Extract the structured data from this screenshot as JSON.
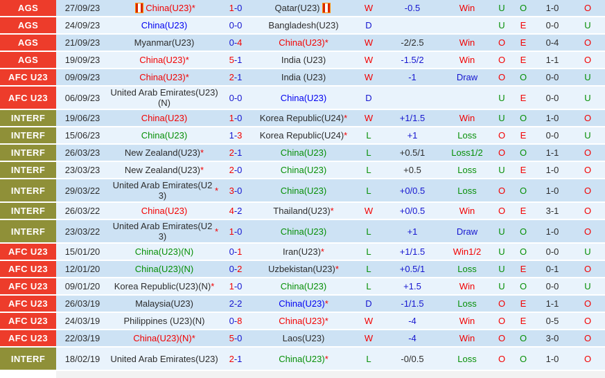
{
  "palette": {
    "row_dark": "#cde2f4",
    "row_light": "#e9f3fc",
    "badge_red": "#ed3c2b",
    "badge_olive": "#8f9038",
    "red": "#f20000",
    "blue": "#1515cf",
    "team_blue": "#0000f0",
    "green": "#068f06",
    "dark": "#2d2d2d"
  },
  "league_colors": {
    "AGS": "badge_red",
    "AFC U23": "badge_red",
    "INTERF": "badge_olive"
  },
  "rows": [
    {
      "league": "AGS",
      "date": "27/09/23",
      "home": {
        "name": "China(U23)",
        "star": true,
        "color": "red",
        "icon": true
      },
      "score": {
        "home": 1,
        "away": 0
      },
      "away": {
        "name": "Qatar(U23)",
        "star": false,
        "color": "dark",
        "icon": true
      },
      "result_letter": {
        "text": "W",
        "color": "red"
      },
      "handicap": {
        "text": "-0.5",
        "color": "blue"
      },
      "handicap_result": {
        "text": "Win",
        "color": "red"
      },
      "over_under": {
        "text": "U",
        "color": "green"
      },
      "odd_even": {
        "text": "O",
        "color": "green"
      },
      "half_time": "1-0",
      "over_under2": {
        "text": "O",
        "color": "red"
      },
      "tall": false
    },
    {
      "league": "AGS",
      "date": "24/09/23",
      "home": {
        "name": "China(U23)",
        "star": false,
        "color": "team_blue",
        "icon": false
      },
      "score": {
        "home": 0,
        "away": 0
      },
      "away": {
        "name": "Bangladesh(U23)",
        "star": false,
        "color": "dark",
        "icon": false
      },
      "result_letter": {
        "text": "D",
        "color": "blue"
      },
      "handicap": {
        "text": "",
        "color": "dark"
      },
      "handicap_result": {
        "text": "",
        "color": "dark"
      },
      "over_under": {
        "text": "U",
        "color": "green"
      },
      "odd_even": {
        "text": "E",
        "color": "red"
      },
      "half_time": "0-0",
      "over_under2": {
        "text": "U",
        "color": "green"
      },
      "tall": false
    },
    {
      "league": "AGS",
      "date": "21/09/23",
      "home": {
        "name": "Myanmar(U23)",
        "star": false,
        "color": "dark",
        "icon": false
      },
      "score": {
        "home": 0,
        "away": 4
      },
      "away": {
        "name": "China(U23)",
        "star": true,
        "color": "red",
        "icon": false
      },
      "result_letter": {
        "text": "W",
        "color": "red"
      },
      "handicap": {
        "text": "-2/2.5",
        "color": "dark"
      },
      "handicap_result": {
        "text": "Win",
        "color": "red"
      },
      "over_under": {
        "text": "O",
        "color": "red"
      },
      "odd_even": {
        "text": "E",
        "color": "red"
      },
      "half_time": "0-4",
      "over_under2": {
        "text": "O",
        "color": "red"
      },
      "tall": false
    },
    {
      "league": "AGS",
      "date": "19/09/23",
      "home": {
        "name": "China(U23)",
        "star": true,
        "color": "red",
        "icon": false
      },
      "score": {
        "home": 5,
        "away": 1
      },
      "away": {
        "name": "India (U23)",
        "star": false,
        "color": "dark",
        "icon": false
      },
      "result_letter": {
        "text": "W",
        "color": "red"
      },
      "handicap": {
        "text": "-1.5/2",
        "color": "blue"
      },
      "handicap_result": {
        "text": "Win",
        "color": "red"
      },
      "over_under": {
        "text": "O",
        "color": "red"
      },
      "odd_even": {
        "text": "E",
        "color": "red"
      },
      "half_time": "1-1",
      "over_under2": {
        "text": "O",
        "color": "red"
      },
      "tall": false
    },
    {
      "league": "AFC U23",
      "date": "09/09/23",
      "home": {
        "name": "China(U23)",
        "star": true,
        "color": "red",
        "icon": false
      },
      "score": {
        "home": 2,
        "away": 1
      },
      "away": {
        "name": "India (U23)",
        "star": false,
        "color": "dark",
        "icon": false
      },
      "result_letter": {
        "text": "W",
        "color": "red"
      },
      "handicap": {
        "text": "-1",
        "color": "blue"
      },
      "handicap_result": {
        "text": "Draw",
        "color": "blue"
      },
      "over_under": {
        "text": "O",
        "color": "red"
      },
      "odd_even": {
        "text": "O",
        "color": "green"
      },
      "half_time": "0-0",
      "over_under2": {
        "text": "U",
        "color": "green"
      },
      "tall": false
    },
    {
      "league": "AFC U23",
      "date": "06/09/23",
      "home": {
        "name": "United Arab Emirates(U23)(N)",
        "star": false,
        "color": "dark",
        "icon": false
      },
      "score": {
        "home": 0,
        "away": 0
      },
      "away": {
        "name": "China(U23)",
        "star": false,
        "color": "team_blue",
        "icon": false
      },
      "result_letter": {
        "text": "D",
        "color": "blue"
      },
      "handicap": {
        "text": "",
        "color": "dark"
      },
      "handicap_result": {
        "text": "",
        "color": "dark"
      },
      "over_under": {
        "text": "U",
        "color": "green"
      },
      "odd_even": {
        "text": "E",
        "color": "red"
      },
      "half_time": "0-0",
      "over_under2": {
        "text": "U",
        "color": "green"
      },
      "tall": true
    },
    {
      "league": "INTERF",
      "date": "19/06/23",
      "home": {
        "name": "China(U23)",
        "star": false,
        "color": "red",
        "icon": false
      },
      "score": {
        "home": 1,
        "away": 0
      },
      "away": {
        "name": "Korea Republic(U24)",
        "star": true,
        "color": "dark",
        "icon": false
      },
      "result_letter": {
        "text": "W",
        "color": "red"
      },
      "handicap": {
        "text": "+1/1.5",
        "color": "blue"
      },
      "handicap_result": {
        "text": "Win",
        "color": "red"
      },
      "over_under": {
        "text": "U",
        "color": "green"
      },
      "odd_even": {
        "text": "O",
        "color": "green"
      },
      "half_time": "1-0",
      "over_under2": {
        "text": "O",
        "color": "red"
      },
      "tall": false
    },
    {
      "league": "INTERF",
      "date": "15/06/23",
      "home": {
        "name": "China(U23)",
        "star": false,
        "color": "green",
        "icon": false
      },
      "score": {
        "home": 1,
        "away": 3
      },
      "away": {
        "name": "Korea Republic(U24)",
        "star": true,
        "color": "dark",
        "icon": false
      },
      "result_letter": {
        "text": "L",
        "color": "green"
      },
      "handicap": {
        "text": "+1",
        "color": "blue"
      },
      "handicap_result": {
        "text": "Loss",
        "color": "green"
      },
      "over_under": {
        "text": "O",
        "color": "red"
      },
      "odd_even": {
        "text": "E",
        "color": "red"
      },
      "half_time": "0-0",
      "over_under2": {
        "text": "U",
        "color": "green"
      },
      "tall": false
    },
    {
      "league": "INTERF",
      "date": "26/03/23",
      "home": {
        "name": "New Zealand(U23)",
        "star": true,
        "color": "dark",
        "icon": false
      },
      "score": {
        "home": 2,
        "away": 1
      },
      "away": {
        "name": "China(U23)",
        "star": false,
        "color": "green",
        "icon": false
      },
      "result_letter": {
        "text": "L",
        "color": "green"
      },
      "handicap": {
        "text": "+0.5/1",
        "color": "dark"
      },
      "handicap_result": {
        "text": "Loss1/2",
        "color": "green"
      },
      "over_under": {
        "text": "O",
        "color": "red"
      },
      "odd_even": {
        "text": "O",
        "color": "green"
      },
      "half_time": "1-1",
      "over_under2": {
        "text": "O",
        "color": "red"
      },
      "tall": false
    },
    {
      "league": "INTERF",
      "date": "23/03/23",
      "home": {
        "name": "New Zealand(U23)",
        "star": true,
        "color": "dark",
        "icon": false
      },
      "score": {
        "home": 2,
        "away": 0
      },
      "away": {
        "name": "China(U23)",
        "star": false,
        "color": "green",
        "icon": false
      },
      "result_letter": {
        "text": "L",
        "color": "green"
      },
      "handicap": {
        "text": "+0.5",
        "color": "dark"
      },
      "handicap_result": {
        "text": "Loss",
        "color": "green"
      },
      "over_under": {
        "text": "U",
        "color": "green"
      },
      "odd_even": {
        "text": "E",
        "color": "red"
      },
      "half_time": "1-0",
      "over_under2": {
        "text": "O",
        "color": "red"
      },
      "tall": false
    },
    {
      "league": "INTERF",
      "date": "29/03/22",
      "home": {
        "name": "United Arab Emirates(U23)",
        "star": true,
        "color": "dark",
        "icon": false
      },
      "score": {
        "home": 3,
        "away": 0
      },
      "away": {
        "name": "China(U23)",
        "star": false,
        "color": "green",
        "icon": false
      },
      "result_letter": {
        "text": "L",
        "color": "green"
      },
      "handicap": {
        "text": "+0/0.5",
        "color": "blue"
      },
      "handicap_result": {
        "text": "Loss",
        "color": "green"
      },
      "over_under": {
        "text": "O",
        "color": "red"
      },
      "odd_even": {
        "text": "O",
        "color": "green"
      },
      "half_time": "1-0",
      "over_under2": {
        "text": "O",
        "color": "red"
      },
      "tall": true
    },
    {
      "league": "INTERF",
      "date": "26/03/22",
      "home": {
        "name": "China(U23)",
        "star": false,
        "color": "red",
        "icon": false
      },
      "score": {
        "home": 4,
        "away": 2
      },
      "away": {
        "name": "Thailand(U23)",
        "star": true,
        "color": "dark",
        "icon": false
      },
      "result_letter": {
        "text": "W",
        "color": "red"
      },
      "handicap": {
        "text": "+0/0.5",
        "color": "blue"
      },
      "handicap_result": {
        "text": "Win",
        "color": "red"
      },
      "over_under": {
        "text": "O",
        "color": "red"
      },
      "odd_even": {
        "text": "E",
        "color": "red"
      },
      "half_time": "3-1",
      "over_under2": {
        "text": "O",
        "color": "red"
      },
      "tall": false
    },
    {
      "league": "INTERF",
      "date": "23/03/22",
      "home": {
        "name": "United Arab Emirates(U23)",
        "star": true,
        "color": "dark",
        "icon": false
      },
      "score": {
        "home": 1,
        "away": 0
      },
      "away": {
        "name": "China(U23)",
        "star": false,
        "color": "green",
        "icon": false
      },
      "result_letter": {
        "text": "L",
        "color": "green"
      },
      "handicap": {
        "text": "+1",
        "color": "blue"
      },
      "handicap_result": {
        "text": "Draw",
        "color": "blue"
      },
      "over_under": {
        "text": "U",
        "color": "green"
      },
      "odd_even": {
        "text": "O",
        "color": "green"
      },
      "half_time": "1-0",
      "over_under2": {
        "text": "O",
        "color": "red"
      },
      "tall": true
    },
    {
      "league": "AFC U23",
      "date": "15/01/20",
      "home": {
        "name": "China(U23)(N)",
        "star": false,
        "color": "green",
        "icon": false
      },
      "score": {
        "home": 0,
        "away": 1
      },
      "away": {
        "name": "Iran(U23)",
        "star": true,
        "color": "dark",
        "icon": false
      },
      "result_letter": {
        "text": "L",
        "color": "green"
      },
      "handicap": {
        "text": "+1/1.5",
        "color": "blue"
      },
      "handicap_result": {
        "text": "Win1/2",
        "color": "red"
      },
      "over_under": {
        "text": "U",
        "color": "green"
      },
      "odd_even": {
        "text": "O",
        "color": "green"
      },
      "half_time": "0-0",
      "over_under2": {
        "text": "U",
        "color": "green"
      },
      "tall": false
    },
    {
      "league": "AFC U23",
      "date": "12/01/20",
      "home": {
        "name": "China(U23)(N)",
        "star": false,
        "color": "green",
        "icon": false
      },
      "score": {
        "home": 0,
        "away": 2
      },
      "away": {
        "name": "Uzbekistan(U23)",
        "star": true,
        "color": "dark",
        "icon": false
      },
      "result_letter": {
        "text": "L",
        "color": "green"
      },
      "handicap": {
        "text": "+0.5/1",
        "color": "blue"
      },
      "handicap_result": {
        "text": "Loss",
        "color": "green"
      },
      "over_under": {
        "text": "U",
        "color": "green"
      },
      "odd_even": {
        "text": "E",
        "color": "red"
      },
      "half_time": "0-1",
      "over_under2": {
        "text": "O",
        "color": "red"
      },
      "tall": false
    },
    {
      "league": "AFC U23",
      "date": "09/01/20",
      "home": {
        "name": "Korea Republic(U23)(N)",
        "star": true,
        "color": "dark",
        "icon": false
      },
      "score": {
        "home": 1,
        "away": 0
      },
      "away": {
        "name": "China(U23)",
        "star": false,
        "color": "green",
        "icon": false
      },
      "result_letter": {
        "text": "L",
        "color": "green"
      },
      "handicap": {
        "text": "+1.5",
        "color": "blue"
      },
      "handicap_result": {
        "text": "Win",
        "color": "red"
      },
      "over_under": {
        "text": "U",
        "color": "green"
      },
      "odd_even": {
        "text": "O",
        "color": "green"
      },
      "half_time": "0-0",
      "over_under2": {
        "text": "U",
        "color": "green"
      },
      "tall": false
    },
    {
      "league": "AFC U23",
      "date": "26/03/19",
      "home": {
        "name": "Malaysia(U23)",
        "star": false,
        "color": "dark",
        "icon": false
      },
      "score": {
        "home": 2,
        "away": 2
      },
      "away": {
        "name": "China(U23)",
        "star": true,
        "color": "team_blue",
        "icon": false
      },
      "result_letter": {
        "text": "D",
        "color": "blue"
      },
      "handicap": {
        "text": "-1/1.5",
        "color": "blue"
      },
      "handicap_result": {
        "text": "Loss",
        "color": "green"
      },
      "over_under": {
        "text": "O",
        "color": "red"
      },
      "odd_even": {
        "text": "E",
        "color": "red"
      },
      "half_time": "1-1",
      "over_under2": {
        "text": "O",
        "color": "red"
      },
      "tall": false
    },
    {
      "league": "AFC U23",
      "date": "24/03/19",
      "home": {
        "name": "Philippines (U23)(N)",
        "star": false,
        "color": "dark",
        "icon": false
      },
      "score": {
        "home": 0,
        "away": 8
      },
      "away": {
        "name": "China(U23)",
        "star": true,
        "color": "red",
        "icon": false
      },
      "result_letter": {
        "text": "W",
        "color": "red"
      },
      "handicap": {
        "text": "-4",
        "color": "blue"
      },
      "handicap_result": {
        "text": "Win",
        "color": "red"
      },
      "over_under": {
        "text": "O",
        "color": "red"
      },
      "odd_even": {
        "text": "E",
        "color": "red"
      },
      "half_time": "0-5",
      "over_under2": {
        "text": "O",
        "color": "red"
      },
      "tall": false
    },
    {
      "league": "AFC U23",
      "date": "22/03/19",
      "home": {
        "name": "China(U23)(N)",
        "star": true,
        "color": "red",
        "icon": false
      },
      "score": {
        "home": 5,
        "away": 0
      },
      "away": {
        "name": "Laos(U23)",
        "star": false,
        "color": "dark",
        "icon": false
      },
      "result_letter": {
        "text": "W",
        "color": "red"
      },
      "handicap": {
        "text": "-4",
        "color": "blue"
      },
      "handicap_result": {
        "text": "Win",
        "color": "red"
      },
      "over_under": {
        "text": "O",
        "color": "red"
      },
      "odd_even": {
        "text": "O",
        "color": "green"
      },
      "half_time": "3-0",
      "over_under2": {
        "text": "O",
        "color": "red"
      },
      "tall": false
    },
    {
      "league": "INTERF",
      "date": "18/02/19",
      "home": {
        "name": "United Arab Emirates(U23)",
        "star": false,
        "color": "dark",
        "icon": false
      },
      "score": {
        "home": 2,
        "away": 1
      },
      "away": {
        "name": "China(U23)",
        "star": true,
        "color": "green",
        "icon": false
      },
      "result_letter": {
        "text": "L",
        "color": "green"
      },
      "handicap": {
        "text": "-0/0.5",
        "color": "dark"
      },
      "handicap_result": {
        "text": "Loss",
        "color": "green"
      },
      "over_under": {
        "text": "O",
        "color": "red"
      },
      "odd_even": {
        "text": "O",
        "color": "green"
      },
      "half_time": "1-0",
      "over_under2": {
        "text": "O",
        "color": "red"
      },
      "tall": true
    }
  ]
}
